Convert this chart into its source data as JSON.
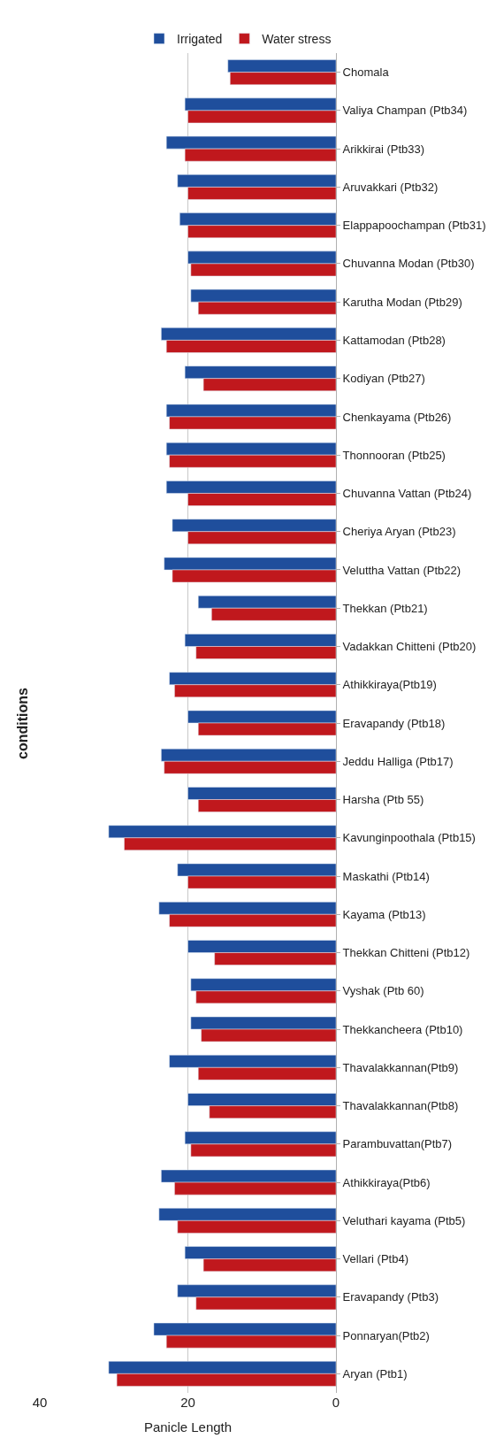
{
  "chart_data": {
    "type": "bar",
    "orientation": "horizontal",
    "title": "conditions",
    "xlabel": "Panicle Length",
    "categories": [
      "Chomala",
      "Valiya Champan (Ptb34)",
      "Arikkirai (Ptb33)",
      "Aruvakkari (Ptb32)",
      "Elappapoochampan (Ptb31)",
      "Chuvanna Modan (Ptb30)",
      "Karutha Modan (Ptb29)",
      "Kattamodan (Ptb28)",
      "Kodiyan (Ptb27)",
      "Chenkayama (Ptb26)",
      "Thonnooran (Ptb25)",
      "Chuvanna Vattan (Ptb24)",
      "Cheriya Aryan (Ptb23)",
      "Veluttha Vattan (Ptb22)",
      "Thekkan (Ptb21)",
      "Vadakkan Chitteni (Ptb20)",
      "Athikkiraya(Ptb19)",
      "Eravapandy (Ptb18)",
      "Jeddu Halliga (Ptb17)",
      "Harsha (Ptb 55)",
      "Kavunginpoothala (Ptb15)",
      "Maskathi (Ptb14)",
      "Kayama (Ptb13)",
      "Thekkan Chitteni (Ptb12)",
      "Vyshak (Ptb 60)",
      "Thekkancheera (Ptb10)",
      "Thavalakkannan(Ptb9)",
      "Thavalakkannan(Ptb8)",
      "Parambuvattan(Ptb7)",
      "Athikkiraya(Ptb6)",
      "Veluthari kayama (Ptb5)",
      "Vellari (Ptb4)",
      "Eravapandy (Ptb3)",
      "Ponnaryan(Ptb2)",
      "Aryan (Ptb1)"
    ],
    "series": [
      {
        "name": "Irrigated",
        "color": "#1f4e9c",
        "values": [
          14.6,
          20.4,
          22.9,
          21.4,
          21.1,
          20,
          19.6,
          23.6,
          20.4,
          22.9,
          22.9,
          22.9,
          22.1,
          23.2,
          18.6,
          20.4,
          22.5,
          20,
          23.6,
          20,
          30.7,
          21.4,
          23.9,
          20,
          19.6,
          19.6,
          22.5,
          20,
          20.4,
          23.6,
          23.9,
          20.4,
          21.4,
          24.6,
          30.7
        ]
      },
      {
        "name": "Water stress",
        "color": "#c0181d",
        "values": [
          14.3,
          20,
          20.4,
          20,
          20,
          19.6,
          18.6,
          22.9,
          17.9,
          22.5,
          22.5,
          20,
          20,
          22.1,
          16.8,
          18.9,
          21.8,
          18.6,
          23.2,
          18.6,
          28.6,
          20,
          22.5,
          16.4,
          18.9,
          18.2,
          18.6,
          17.1,
          19.6,
          21.8,
          21.4,
          17.9,
          18.9,
          22.9,
          29.6
        ]
      }
    ],
    "xlim": [
      40,
      0
    ],
    "xticks": [
      40,
      20,
      0
    ],
    "grid": "x",
    "legend": "top right"
  }
}
